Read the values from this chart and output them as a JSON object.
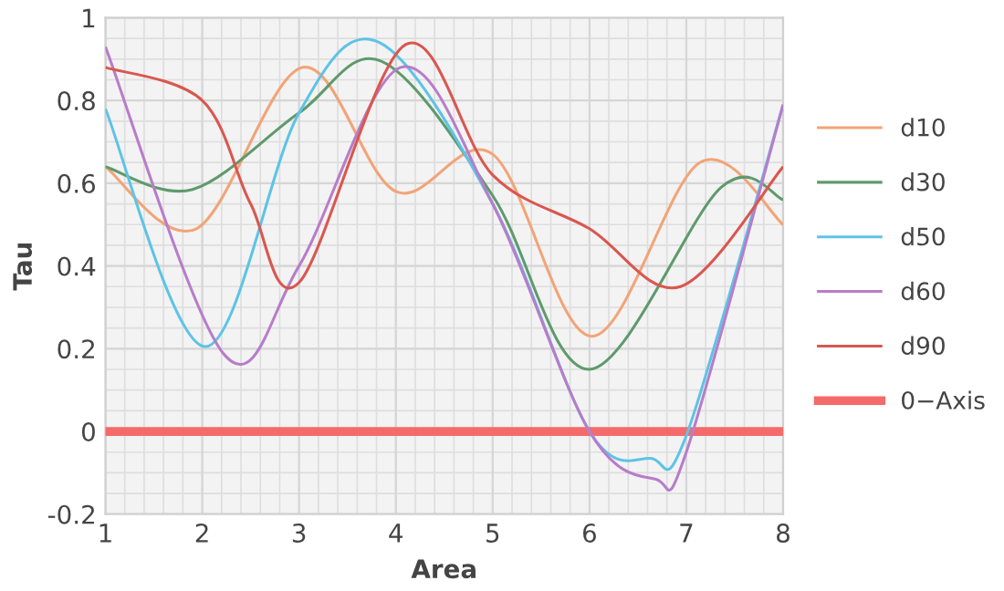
{
  "chart_data": {
    "type": "line",
    "xlabel": "Area",
    "ylabel": "Tau",
    "xlim": [
      1,
      8
    ],
    "ylim": [
      -0.2,
      1
    ],
    "xticks": [
      1,
      2,
      3,
      4,
      5,
      6,
      7,
      8
    ],
    "yticks": [
      -0.2,
      0,
      0.2,
      0.4,
      0.6,
      0.8,
      1
    ],
    "grid": true,
    "legend": "right",
    "marker": "none",
    "line_style": "solid",
    "series": [
      {
        "name": "d10",
        "color": "#f2a477",
        "x": [
          1,
          1.94,
          3.04,
          4,
          5,
          6.02,
          7.14,
          8
        ],
        "values": [
          0.64,
          0.49,
          0.88,
          0.58,
          0.67,
          0.23,
          0.65,
          0.5
        ]
      },
      {
        "name": "d30",
        "color": "#5f9a6c",
        "x": [
          1,
          1.9,
          3,
          3.85,
          5,
          6,
          7.36,
          8
        ],
        "values": [
          0.64,
          0.585,
          0.77,
          0.895,
          0.57,
          0.15,
          0.59,
          0.56
        ]
      },
      {
        "name": "d50",
        "color": "#5ec3e6",
        "x": [
          1,
          2.03,
          3,
          3.83,
          5,
          6,
          6.63,
          7,
          8
        ],
        "values": [
          0.78,
          0.205,
          0.77,
          0.94,
          0.55,
          0.0,
          -0.065,
          -0.01,
          0.79
        ]
      },
      {
        "name": "d60",
        "color": "#b77dc9",
        "x": [
          1,
          2.23,
          3,
          4.05,
          5,
          6,
          6.68,
          7,
          8
        ],
        "values": [
          0.93,
          0.185,
          0.4,
          0.88,
          0.55,
          0.0,
          -0.115,
          -0.05,
          0.79
        ]
      },
      {
        "name": "d90",
        "color": "#d9574f",
        "x": [
          1,
          2,
          2.5,
          3,
          4.1,
          5,
          6,
          6.94,
          8
        ],
        "values": [
          0.88,
          0.8,
          0.55,
          0.36,
          0.935,
          0.62,
          0.49,
          0.35,
          0.64
        ]
      }
    ],
    "ref_lines": [
      {
        "axis": "y",
        "value": 0,
        "label": "0−Axis",
        "color": "#f56a6a"
      }
    ]
  }
}
